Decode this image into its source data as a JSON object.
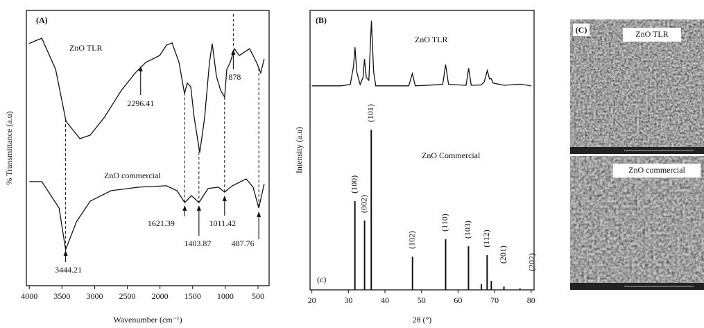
{
  "chart_data": [
    {
      "type": "line",
      "panel_label": "(A)",
      "xlabel": "Wavenumber (cm⁻¹)",
      "ylabel": "% Transmittance (a.u)",
      "xlim": [
        4045,
        330
      ],
      "xticks": [
        4000,
        3500,
        3000,
        2500,
        2000,
        1500,
        1000,
        500
      ],
      "ylim": [
        0,
        100
      ],
      "series": [
        {
          "name": "ZnO TLR",
          "color": "#111111",
          "x": [
            4000,
            3809,
            3597,
            3438,
            3226,
            3067,
            2855,
            2590,
            2378,
            2218,
            2006,
            1900,
            1815,
            1709,
            1625,
            1582,
            1529,
            1476,
            1391,
            1317,
            1243,
            1200,
            1137,
            1073,
            1010,
            978,
            925,
            861,
            787,
            628,
            522,
            458,
            405
          ],
          "values": [
            88,
            89.9,
            78.6,
            59.7,
            53.4,
            54.7,
            61,
            71,
            77.3,
            81.1,
            83.6,
            87.4,
            88.2,
            81.1,
            69.8,
            73.6,
            72.3,
            61,
            48.4,
            61,
            81.1,
            87.9,
            76.1,
            71,
            68.5,
            78.6,
            81.1,
            86.1,
            83.6,
            86.1,
            81.1,
            77.3,
            82.4
          ]
        },
        {
          "name": "ZnO commercial",
          "color": "#111111",
          "x": [
            4000,
            3809,
            3544,
            3444,
            3279,
            3067,
            2749,
            2324,
            1900,
            1741,
            1621,
            1519,
            1403,
            1264,
            1105,
            1011,
            893,
            681,
            575,
            488,
            405
          ],
          "values": [
            37.8,
            37.8,
            28.2,
            13.1,
            23.2,
            30.7,
            34.5,
            35.8,
            36.3,
            34.5,
            30.2,
            32.7,
            30.2,
            35.3,
            35.8,
            34,
            36.3,
            38.8,
            35.8,
            28.2,
            37
          ]
        }
      ],
      "annotations": [
        2296.41,
        878,
        1621.39,
        1403.87,
        1011.42,
        487.76,
        3444.21
      ]
    },
    {
      "type": "line",
      "panel_label": "(B)",
      "corner_label": "(c)",
      "xlabel": "2θ (°)",
      "ylabel": "Intensity (a.u)",
      "xlim": [
        19.5,
        80.8
      ],
      "xticks": [
        20,
        30,
        40,
        50,
        60,
        70,
        80
      ],
      "ylim": [
        0,
        100
      ],
      "series": [
        {
          "name": "ZnO TLR",
          "color": "#111111",
          "kind": "line",
          "x": [
            20,
            28,
            30.5,
            31.4,
            31.8,
            32.3,
            33.2,
            34,
            34.4,
            34.9,
            35.6,
            36.3,
            36.9,
            37.5,
            46.5,
            47.5,
            48.3,
            55.8,
            56.6,
            57.4,
            62.2,
            62.9,
            63.6,
            66.3,
            67.2,
            68,
            68.6,
            69.1,
            69.6,
            72.6,
            77,
            80
          ],
          "values": [
            73,
            73,
            73.5,
            80,
            86.8,
            78,
            73.5,
            76,
            82.6,
            76,
            75,
            96.3,
            78,
            73,
            73,
            77.4,
            73,
            73.5,
            80.6,
            73.5,
            73.2,
            79.3,
            73.2,
            73.3,
            74.5,
            78.5,
            75.5,
            75.5,
            74,
            73.2,
            73.6,
            73
          ]
        },
        {
          "name": "ZnO Commercial",
          "color": "#111111",
          "kind": "stick",
          "x": [
            31.77,
            34.42,
            36.25,
            47.54,
            56.6,
            62.86,
            66.38,
            67.96,
            69.1,
            72.56,
            76.95
          ],
          "values": [
            31.8,
            24.8,
            57.3,
            11.9,
            18.1,
            15.6,
            2,
            12.4,
            3.2,
            1.2,
            0.5
          ],
          "peak_labels": [
            "(100)",
            "(002)",
            "(101)",
            "(102)",
            "(110)",
            "(103)",
            null,
            "(112)",
            "(201)",
            null,
            "(202)"
          ]
        }
      ]
    }
  ],
  "image_panel": {
    "label": "(C)",
    "images": [
      {
        "caption": "ZnO TLR"
      },
      {
        "caption": "ZnO commercial"
      }
    ]
  }
}
